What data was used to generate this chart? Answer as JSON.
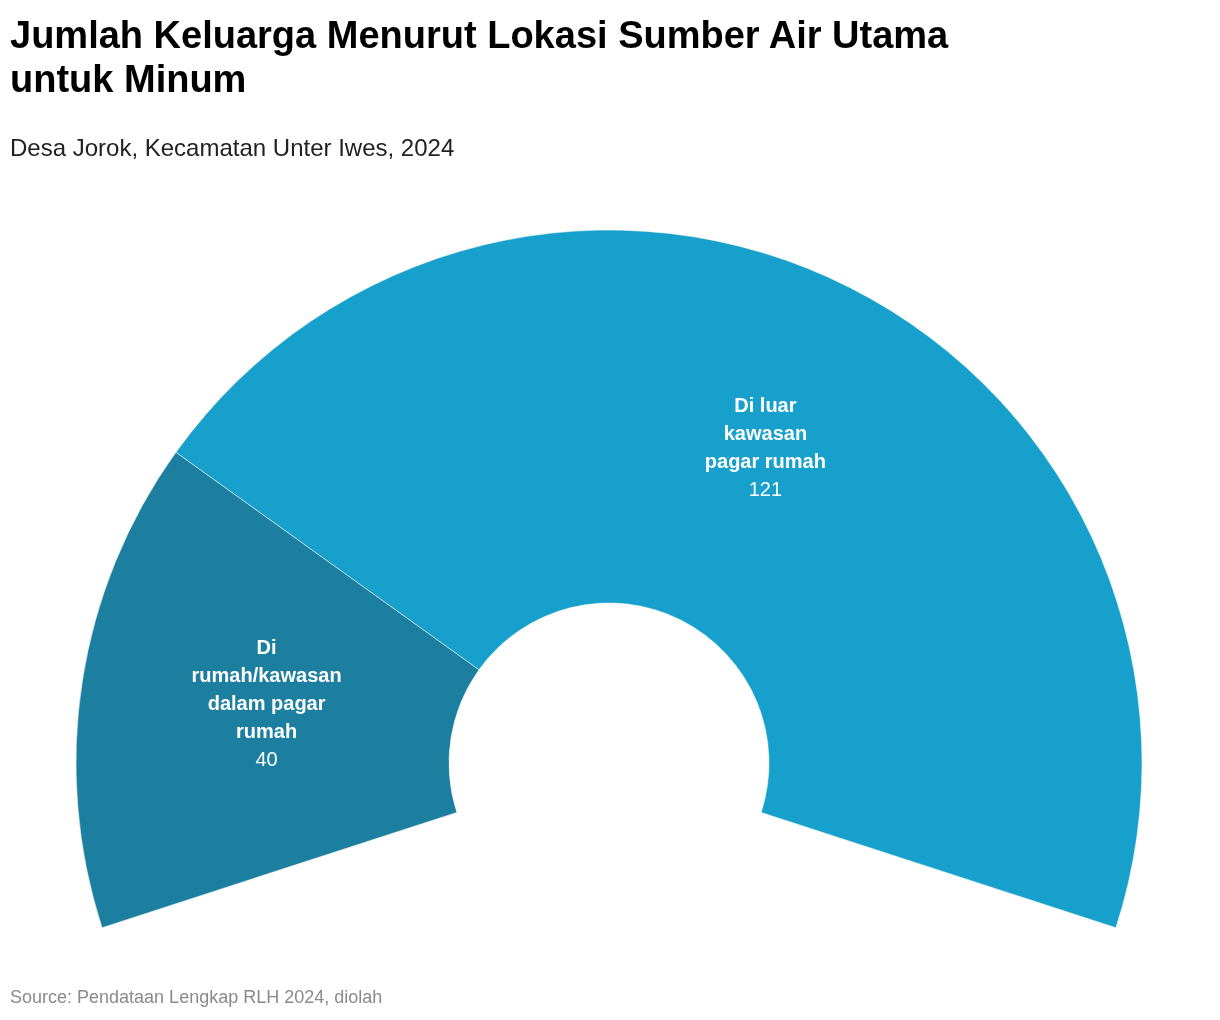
{
  "chart_data": {
    "type": "donut",
    "title": "Jumlah Keluarga Menurut Lokasi Sumber Air Utama untuk Minum",
    "subtitle": "Desa Jorok, Kecamatan Unter Iwes, 2024",
    "categories": [
      "Di rumah/kawasan dalam pagar rumah",
      "Di luar kawasan pagar rumah"
    ],
    "values": [
      40,
      121
    ],
    "colors": [
      "#1d7fa0",
      "#18a0cc"
    ],
    "data_labels": true,
    "annotations": [
      "Source: Pendataan Lengkap RLH 2024, diolah"
    ]
  }
}
